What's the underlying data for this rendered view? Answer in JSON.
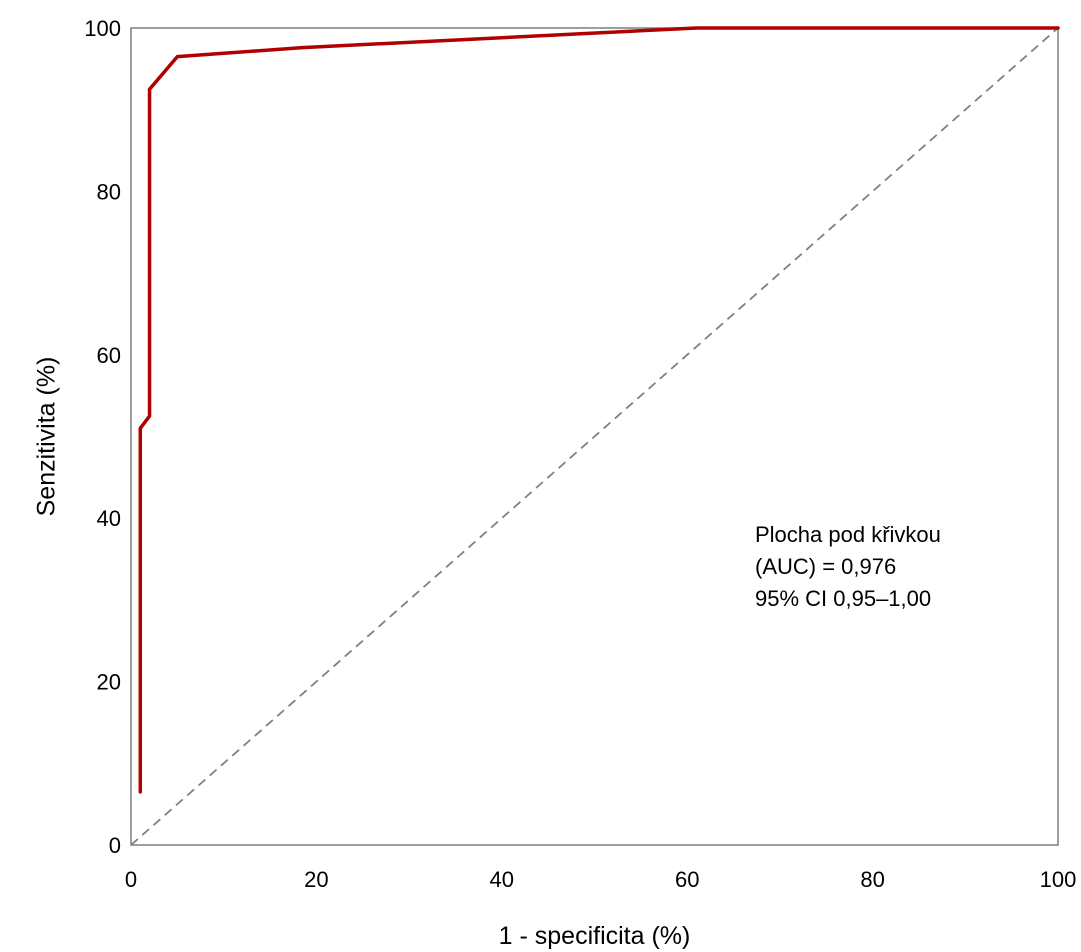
{
  "chart_data": {
    "type": "line",
    "xlabel": "1 - specificita (%)",
    "ylabel": "Senzitivita (%)",
    "xlim": [
      0,
      100
    ],
    "ylim": [
      0,
      100
    ],
    "xticks": [
      "0",
      "20",
      "40",
      "60",
      "80",
      "100"
    ],
    "yticks": [
      "0",
      "20",
      "40",
      "60",
      "80",
      "100"
    ],
    "grid": false,
    "legend": "none",
    "series": [
      {
        "color": "#b00000",
        "x": [
          1.0,
          1.0,
          2.0,
          2.0,
          5.0,
          18.5,
          61.0,
          100.0
        ],
        "y": [
          6.5,
          51.0,
          52.5,
          92.5,
          96.5,
          97.6,
          100.0,
          100.0
        ]
      }
    ],
    "reference_line": {
      "style": "dashed",
      "color": "#808080",
      "x": [
        0,
        100
      ],
      "y": [
        0,
        100
      ]
    },
    "annotation": {
      "lines": [
        "Plocha pod křivkou",
        "(AUC) = 0,976",
        "95% CI 0,95–1,00"
      ]
    }
  }
}
